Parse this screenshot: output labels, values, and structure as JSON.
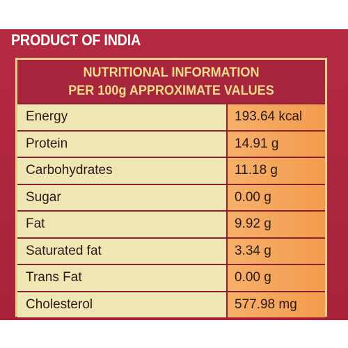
{
  "origin": "PRODUCT OF INDIA",
  "panel": {
    "heading_line1": "NUTRITIONAL INFORMATION",
    "heading_line2": "PER 100g APPROXIMATE VALUES",
    "rows": [
      {
        "name": "Energy",
        "value": "193.64 kcal"
      },
      {
        "name": "Protein",
        "value": "14.91 g"
      },
      {
        "name": "Carbohydrates",
        "value": "11.18 g"
      },
      {
        "name": "Sugar",
        "value": "0.00 g"
      },
      {
        "name": "Fat",
        "value": "9.92 g"
      },
      {
        "name": "Saturated fat",
        "value": "3.34 g"
      },
      {
        "name": "Trans Fat",
        "value": "0.00 g"
      },
      {
        "name": "Cholesterol",
        "value": "577.98 mg"
      }
    ]
  },
  "colors": {
    "pack_red": "#b0283f",
    "heading_gold": "#f2dc8c",
    "label_cell": "#efe7b3",
    "value_cell": "#f4a35a"
  }
}
